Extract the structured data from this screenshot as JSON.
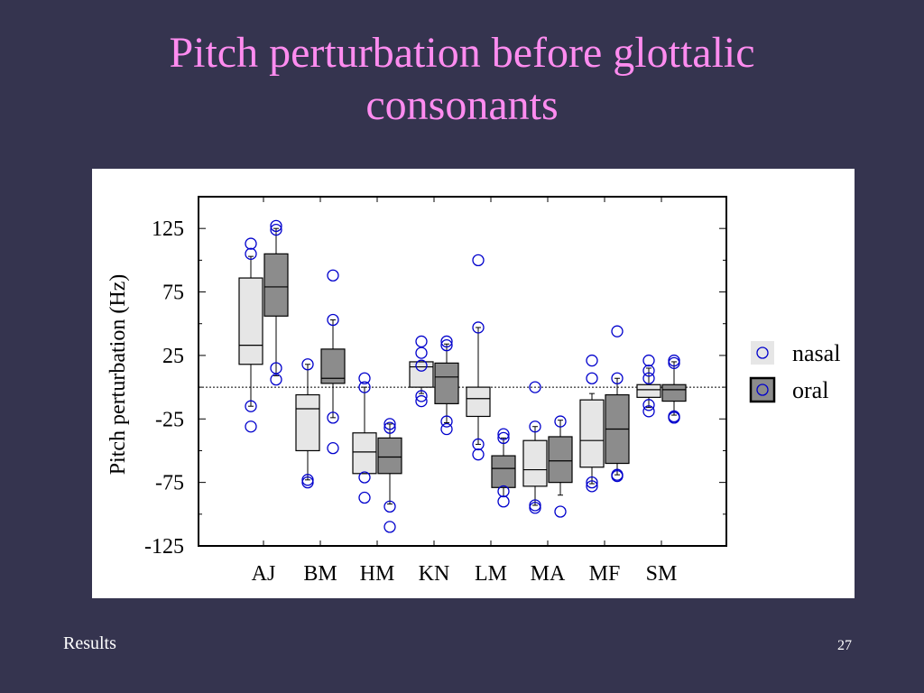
{
  "slide": {
    "title_line1": "Pitch perturbation before glottalic",
    "title_line2": "consonants",
    "footer_left": "Results",
    "page_number": "27",
    "background_color": "#35344f",
    "title_color": "#ff8cf0"
  },
  "chart_data": {
    "type": "boxplot",
    "title": "",
    "xlabel": "",
    "ylabel": "Pitch perturbation (Hz)",
    "ylim": [
      -125,
      150
    ],
    "yticks": [
      125,
      75,
      25,
      -25,
      -75,
      -125
    ],
    "reference_line": 0,
    "categories": [
      "AJ",
      "BM",
      "HM",
      "KN",
      "LM",
      "MA",
      "MF",
      "SM"
    ],
    "legend": {
      "position": "right",
      "entries": [
        {
          "label": "nasal",
          "fill": "#e6e6e6",
          "marker": "circle",
          "marker_color": "#0000cc"
        },
        {
          "label": "oral",
          "fill": "#8c8c8c",
          "marker": "circle",
          "marker_color": "#0000cc"
        }
      ]
    },
    "series": [
      {
        "name": "nasal",
        "fill": "#e6e6e6",
        "boxes": [
          {
            "category": "AJ",
            "whisker_low": -15,
            "q1": 18,
            "median": 33,
            "q3": 86,
            "whisker_high": 103,
            "outliers": [
              113,
              105,
              -15,
              -31
            ]
          },
          {
            "category": "BM",
            "whisker_low": -73,
            "q1": -50,
            "median": -17,
            "q3": -6,
            "whisker_high": 18,
            "outliers": [
              18,
              -73,
              -75
            ]
          },
          {
            "category": "HM",
            "whisker_low": -68,
            "q1": -68,
            "median": -51,
            "q3": -36,
            "whisker_high": 0,
            "outliers": [
              7,
              0,
              -71,
              -87
            ]
          },
          {
            "category": "KN",
            "whisker_low": -5,
            "q1": 0,
            "median": 16,
            "q3": 20,
            "whisker_high": 20,
            "outliers": [
              36,
              27,
              17,
              -7,
              -11
            ]
          },
          {
            "category": "LM",
            "whisker_low": -45,
            "q1": -23,
            "median": -9,
            "q3": 0,
            "whisker_high": 47,
            "outliers": [
              100,
              47,
              -45,
              -53
            ]
          },
          {
            "category": "MA",
            "whisker_low": -93,
            "q1": -78,
            "median": -65,
            "q3": -42,
            "whisker_high": -31,
            "outliers": [
              0,
              -31,
              -93,
              -95
            ]
          },
          {
            "category": "MF",
            "whisker_low": -76,
            "q1": -63,
            "median": -42,
            "q3": -10,
            "whisker_high": -5,
            "outliers": [
              21,
              7,
              -75,
              -78
            ]
          },
          {
            "category": "SM",
            "whisker_low": -16,
            "q1": -8,
            "median": -2,
            "q3": 2,
            "whisker_high": 15,
            "outliers": [
              21,
              13,
              7,
              -14,
              -19
            ]
          }
        ]
      },
      {
        "name": "oral",
        "fill": "#8c8c8c",
        "boxes": [
          {
            "category": "AJ",
            "whisker_low": 9,
            "q1": 56,
            "median": 79,
            "q3": 105,
            "whisker_high": 125,
            "outliers": [
              127,
              124,
              15,
              6
            ]
          },
          {
            "category": "BM",
            "whisker_low": -24,
            "q1": 3,
            "median": 7,
            "q3": 30,
            "whisker_high": 53,
            "outliers": [
              88,
              53,
              -24,
              -48
            ]
          },
          {
            "category": "HM",
            "whisker_low": -92,
            "q1": -68,
            "median": -55,
            "q3": -40,
            "whisker_high": -29,
            "outliers": [
              -29,
              -32,
              -94,
              -110
            ]
          },
          {
            "category": "KN",
            "whisker_low": -28,
            "q1": -13,
            "median": 8,
            "q3": 19,
            "whisker_high": 34,
            "outliers": [
              36,
              33,
              -27,
              -33
            ]
          },
          {
            "category": "LM",
            "whisker_low": -86,
            "q1": -79,
            "median": -64,
            "q3": -54,
            "whisker_high": -40,
            "outliers": [
              -37,
              -40,
              -82,
              -90
            ]
          },
          {
            "category": "MA",
            "whisker_low": -85,
            "q1": -75,
            "median": -58,
            "q3": -39,
            "whisker_high": -26,
            "outliers": [
              -27,
              -98
            ]
          },
          {
            "category": "MF",
            "whisker_low": -69,
            "q1": -60,
            "median": -33,
            "q3": -6,
            "whisker_high": 7,
            "outliers": [
              44,
              7,
              -69,
              -70
            ]
          },
          {
            "category": "SM",
            "whisker_low": -22,
            "q1": -11,
            "median": -2,
            "q3": 2,
            "whisker_high": 20,
            "outliers": [
              21,
              19,
              -23,
              -24
            ]
          }
        ]
      }
    ]
  }
}
